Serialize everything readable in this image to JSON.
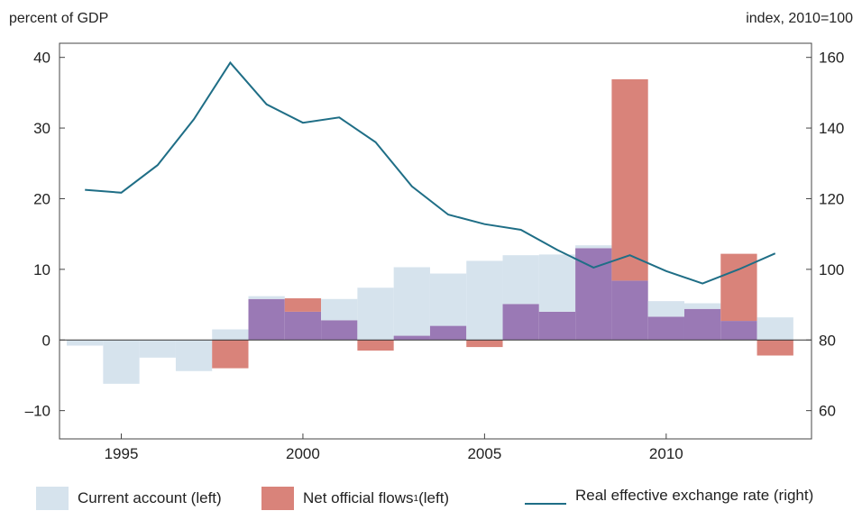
{
  "header": {
    "left_unit": "percent of GDP",
    "right_unit": "index, 2010=100"
  },
  "legend": {
    "current_account": "Current account (left)",
    "net_official": "Net official flows",
    "net_official_sup": "1",
    "net_official_suffix": " (left)",
    "reer": "Real effective exchange rate (right)"
  },
  "colors": {
    "current_account": "#d6e3ed",
    "net_official": "#d9837a",
    "overlap": "#9a79b5",
    "reer": "#1f6e86",
    "axis": "#444444"
  },
  "chart_data": {
    "type": "bar",
    "years": [
      1994,
      1995,
      1996,
      1997,
      1998,
      1999,
      2000,
      2001,
      2002,
      2003,
      2004,
      2005,
      2006,
      2007,
      2008,
      2009,
      2010,
      2011,
      2012,
      2013
    ],
    "series": [
      {
        "name": "Current account (left)",
        "axis": "left",
        "values": [
          -0.8,
          -6.2,
          -2.5,
          -4.4,
          1.5,
          6.2,
          4.0,
          5.8,
          7.4,
          10.3,
          9.4,
          11.2,
          12.0,
          12.1,
          13.4,
          8.4,
          5.5,
          5.2,
          2.7,
          3.2
        ]
      },
      {
        "name": "Net official flows¹ (left)",
        "axis": "left",
        "values": [
          0,
          0,
          0,
          0,
          -4.0,
          5.8,
          5.9,
          2.8,
          -1.5,
          0.6,
          2.0,
          -1.0,
          5.1,
          4.0,
          13.0,
          36.9,
          3.3,
          4.4,
          12.2,
          -2.2
        ]
      },
      {
        "name": "Real effective exchange rate (right)",
        "axis": "right",
        "type": "line",
        "values": [
          122.5,
          121.7,
          129.5,
          142.5,
          158.5,
          146.7,
          141.5,
          143.0,
          136.0,
          123.5,
          115.5,
          112.8,
          111.2,
          105.5,
          100.5,
          104.0,
          99.5,
          96.0,
          100.0,
          104.5
        ]
      }
    ],
    "x_ticks": [
      "1995",
      "2000",
      "2005",
      "2010"
    ],
    "x_tick_values": [
      1995,
      2000,
      2005,
      2010
    ],
    "xlim": [
      1993.3,
      2014.0
    ],
    "left_ticks": [
      "–10",
      "0",
      "10",
      "20",
      "30",
      "40"
    ],
    "left_tick_values": [
      -10,
      0,
      10,
      20,
      30,
      40
    ],
    "ylim_left": [
      -14,
      42
    ],
    "right_ticks": [
      "60",
      "80",
      "100",
      "120",
      "140",
      "160"
    ],
    "right_tick_values": [
      60,
      80,
      100,
      120,
      140,
      160
    ],
    "ylim_right": [
      52,
      164
    ],
    "grid": false,
    "legend_position": "bottom"
  }
}
